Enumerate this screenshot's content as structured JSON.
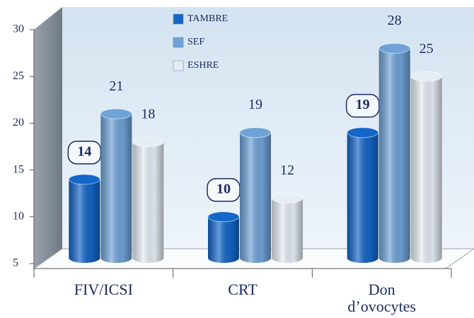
{
  "chart_data": {
    "type": "bar",
    "categories": [
      "FIV/ICSI",
      "CRT",
      "Don d’ovocytes"
    ],
    "series": [
      {
        "name": "TAMBRE",
        "color": "#1466c8",
        "values": [
          14,
          10,
          19
        ]
      },
      {
        "name": "SEF",
        "color": "#6fa3d8",
        "values": [
          21,
          19,
          28
        ]
      },
      {
        "name": "ESHRE",
        "color": "#e6edf5",
        "values": [
          18,
          12,
          25
        ]
      }
    ],
    "ylim": [
      5,
      30
    ],
    "yticks": [
      5,
      10,
      15,
      20,
      25,
      30
    ]
  }
}
